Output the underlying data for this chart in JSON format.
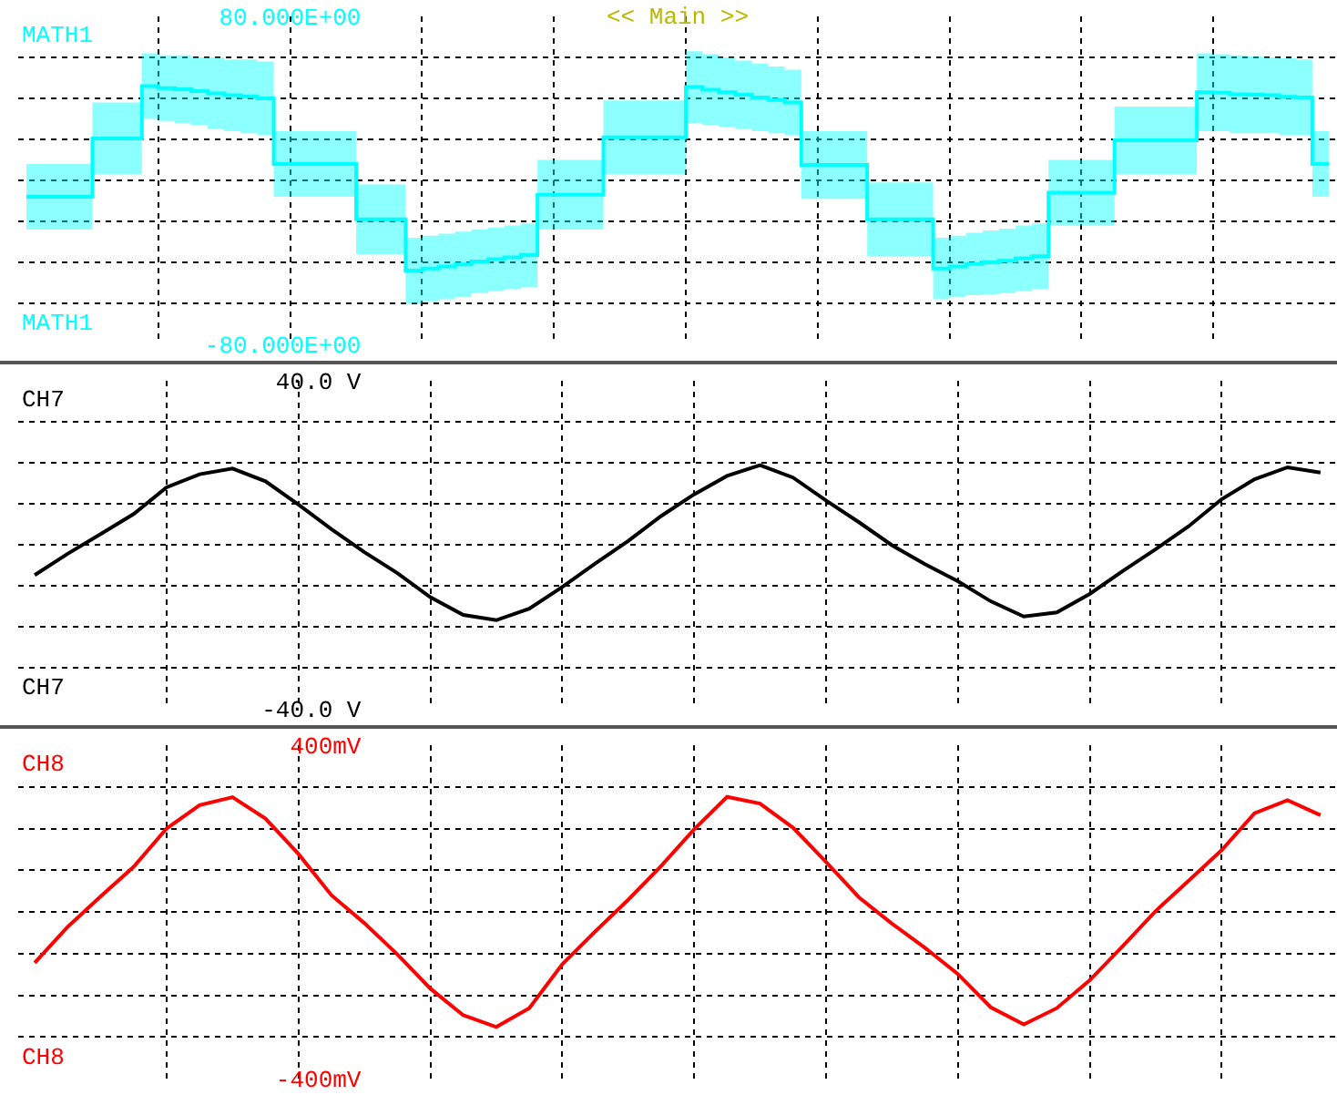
{
  "chart_data": [
    {
      "type": "step",
      "annotations": [
        "<< Main >>"
      ],
      "categories": [
        null,
        null,
        null,
        null,
        null,
        null,
        null,
        null,
        null,
        null,
        null,
        null,
        null,
        null,
        null,
        null,
        null,
        null,
        null,
        null,
        null,
        null,
        null,
        null,
        null,
        null,
        null,
        null,
        null,
        null,
        null,
        null,
        null,
        null,
        null,
        null,
        null,
        null,
        null,
        null,
        null,
        null,
        null,
        null,
        null,
        null,
        null,
        null,
        null,
        null,
        null,
        null,
        null,
        null,
        null,
        null,
        null,
        null,
        null,
        null,
        null,
        null,
        null,
        null,
        null,
        null,
        null,
        null,
        null,
        null,
        null,
        null,
        null,
        null,
        null,
        null,
        null,
        null,
        null,
        null
      ],
      "ylim": [
        -80,
        80
      ],
      "yticks": [
        {
          "value": -80,
          "label": "-80.000E+00"
        },
        {
          "value": -60,
          "label": null
        },
        {
          "value": -40,
          "label": null
        },
        {
          "value": -20,
          "label": null
        },
        {
          "value": 0,
          "label": null
        },
        {
          "value": 20,
          "label": null
        },
        {
          "value": 40,
          "label": null
        },
        {
          "value": 60,
          "label": null
        },
        {
          "value": 80,
          "label": "80.000E+00"
        }
      ],
      "grid": true,
      "tick_labels": "y",
      "legend": false,
      "series": [
        {
          "name": "MATH1",
          "color": "#00ffff",
          "values": [
            -8,
            -8,
            -8,
            -8,
            20.5,
            20.5,
            20.5,
            46,
            45,
            44.5,
            43.5,
            42.5,
            41.5,
            41,
            40,
            8,
            8,
            8,
            8,
            8,
            -19,
            -19,
            -19,
            -44,
            -43,
            -42,
            -41,
            -39.5,
            -38.5,
            -37.5,
            -36.5,
            -7,
            -7,
            -7,
            -7,
            21,
            21,
            21,
            21,
            21,
            45.5,
            44.25,
            43,
            41.75,
            40.5,
            39.25,
            38,
            7.5,
            7.5,
            7.5,
            7.5,
            -19,
            -19,
            -19,
            -19,
            -43,
            -42,
            -40.75,
            -40,
            -39.25,
            -38,
            -37,
            -6,
            -6,
            -6,
            -6,
            19.5,
            19.5,
            19.5,
            19.5,
            19.5,
            43,
            42.75,
            42,
            41.75,
            41.5,
            40.75,
            40.5,
            8,
            8
          ],
          "lower": [
            -24,
            -24,
            -24,
            -24,
            3,
            3,
            3,
            30,
            29,
            28,
            27,
            25,
            24,
            23,
            22,
            -8,
            -8,
            -8,
            -8,
            -8,
            -36,
            -36,
            -36,
            -60,
            -59,
            -58,
            -57,
            -55,
            -54,
            -53,
            -52,
            -24,
            -24,
            -24,
            -24,
            3,
            3,
            3,
            3,
            3,
            28,
            27,
            26,
            25,
            24,
            23,
            22,
            -9,
            -9,
            -9,
            -9,
            -37,
            -37,
            -37,
            -37,
            -58,
            -57,
            -56,
            -55.5,
            -55,
            -54,
            -53,
            -22,
            -22,
            -22,
            -22,
            3,
            3,
            3,
            3,
            3,
            24,
            24,
            23,
            23,
            23,
            22,
            22,
            -8,
            -8
          ],
          "upper": [
            8,
            8,
            8,
            8,
            38,
            38,
            38,
            62,
            61,
            61,
            60,
            60,
            59,
            59,
            58,
            24,
            24,
            24,
            24,
            24,
            -2,
            -2,
            -2,
            -28,
            -27,
            -26,
            -25,
            -24,
            -23,
            -22,
            -21,
            10,
            10,
            10,
            10,
            39,
            39,
            39,
            39,
            39,
            63,
            61.5,
            60,
            58.5,
            57,
            55.5,
            54,
            24,
            24,
            24,
            24,
            -1,
            -1,
            -1,
            -1,
            -28,
            -27,
            -25.5,
            -24.5,
            -23.5,
            -22,
            -21,
            10,
            10,
            10,
            10,
            36,
            36,
            36,
            36,
            36,
            62,
            61.5,
            61,
            60.5,
            60,
            59.5,
            59,
            24,
            24
          ]
        }
      ]
    },
    {
      "type": "line",
      "categories": [
        null,
        null,
        null,
        null,
        null,
        null,
        null,
        null,
        null,
        null,
        null,
        null,
        null,
        null,
        null,
        null,
        null,
        null,
        null,
        null,
        null,
        null,
        null,
        null,
        null,
        null,
        null,
        null,
        null,
        null,
        null,
        null,
        null,
        null,
        null,
        null,
        null,
        null,
        null,
        null
      ],
      "ylim": [
        -40,
        40
      ],
      "yticks": [
        {
          "value": -40,
          "label": "-40.0 V"
        },
        {
          "value": -30,
          "label": null
        },
        {
          "value": -20,
          "label": null
        },
        {
          "value": -10,
          "label": null
        },
        {
          "value": 0,
          "label": null
        },
        {
          "value": 10,
          "label": null
        },
        {
          "value": 20,
          "label": null
        },
        {
          "value": 30,
          "label": null
        },
        {
          "value": 40,
          "label": "40.0 V"
        }
      ],
      "grid": true,
      "tick_labels": "y",
      "legend": false,
      "series": [
        {
          "name": "CH7",
          "color": "#000000",
          "values": [
            -7.4,
            -2.2,
            2.6,
            7.5,
            14,
            17.2,
            18.6,
            15.5,
            9.8,
            3.8,
            -1.8,
            -6.9,
            -12.8,
            -17.1,
            -18.4,
            -15.6,
            -10.3,
            -4.6,
            0.9,
            7,
            12.3,
            16.8,
            19.4,
            16.4,
            10.8,
            5.5,
            -0.1,
            -4.7,
            -8.9,
            -13.8,
            -17.5,
            -16.5,
            -12,
            -6.4,
            -1.1,
            4.5,
            11.1,
            16,
            18.9,
            17.6
          ]
        }
      ]
    },
    {
      "type": "line",
      "categories": [
        null,
        null,
        null,
        null,
        null,
        null,
        null,
        null,
        null,
        null,
        null,
        null,
        null,
        null,
        null,
        null,
        null,
        null,
        null,
        null,
        null,
        null,
        null,
        null,
        null,
        null,
        null,
        null,
        null,
        null,
        null,
        null,
        null,
        null,
        null,
        null,
        null,
        null,
        null,
        null
      ],
      "ylim": [
        -400,
        400
      ],
      "yticks": [
        {
          "value": -400,
          "label": "-400mV"
        },
        {
          "value": -300,
          "label": null
        },
        {
          "value": -200,
          "label": null
        },
        {
          "value": -100,
          "label": null
        },
        {
          "value": 0,
          "label": null
        },
        {
          "value": 100,
          "label": null
        },
        {
          "value": 200,
          "label": null
        },
        {
          "value": 300,
          "label": null
        },
        {
          "value": 400,
          "label": "400mV"
        }
      ],
      "grid": true,
      "tick_labels": "y",
      "legend": false,
      "series": [
        {
          "name": "CH8",
          "color": "#ff0000",
          "values": [
            -122,
            -36,
            37,
            108,
            200,
            256,
            275,
            224,
            139,
            40,
            -27,
            -102,
            -184,
            -248,
            -276,
            -231,
            -126,
            -47,
            29,
            110,
            198,
            276,
            260,
            202,
            120,
            35,
            -28,
            -86,
            -149,
            -229,
            -270,
            -231,
            -164,
            -82,
            2,
            75,
            148,
            237,
            268,
            232
          ]
        }
      ]
    }
  ]
}
